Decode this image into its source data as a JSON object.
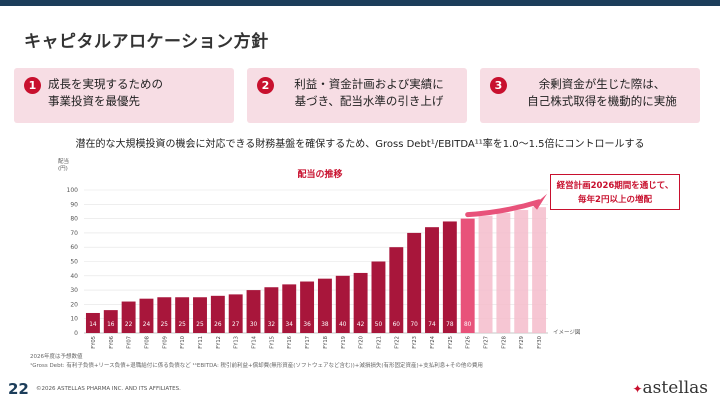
{
  "header": {
    "title": "キャピタルアロケーション方針"
  },
  "pillars": [
    {
      "num": "1",
      "text": "成長を実現するための\n事業投資を最優先"
    },
    {
      "num": "2",
      "text": "利益・資金計画および実績に\n基づき、配当水準の引き上げ"
    },
    {
      "num": "3",
      "text": "余剰資金が生じた際は、\n自己株式取得を機動的に実施"
    }
  ],
  "subtitle": "潜在的な大規模投資の機会に対応できる財務基盤を確保するため、Gross Debt¹/EBITDA¹¹率を1.0〜1.5倍にコントロールする",
  "chart_data": {
    "type": "bar",
    "title": "配当の推移",
    "ylabel": "配当\n(円)",
    "ylim": [
      0,
      100
    ],
    "yticks": [
      0,
      10,
      20,
      30,
      40,
      50,
      60,
      70,
      80,
      90,
      100
    ],
    "categories": [
      "FY05",
      "FY06",
      "FY07",
      "FY08",
      "FY09",
      "FY10",
      "FY11",
      "FY12",
      "FY13",
      "FY14",
      "FY15",
      "FY16",
      "FY17",
      "FY18",
      "FY19",
      "FY20",
      "FY21",
      "FY22",
      "FY23",
      "FY24",
      "FY25",
      "FY26",
      "FY27",
      "FY28",
      "FY29",
      "FY30"
    ],
    "values": [
      14,
      16,
      22,
      24,
      25,
      25,
      25,
      26,
      27,
      30,
      32,
      34,
      36,
      38,
      40,
      42,
      50,
      60,
      70,
      74,
      78,
      80,
      null,
      null,
      null,
      null
    ],
    "labels": [
      "14",
      "16",
      "22",
      "24",
      "25",
      "25",
      "25",
      "26",
      "27",
      "30",
      "32",
      "34",
      "36",
      "38",
      "40",
      "42",
      "50",
      "60",
      "70",
      "74",
      "78",
      "80",
      "",
      "",
      "",
      ""
    ],
    "projected_values": [
      null,
      null,
      null,
      null,
      null,
      null,
      null,
      null,
      null,
      null,
      null,
      null,
      null,
      null,
      null,
      null,
      null,
      null,
      null,
      null,
      null,
      80,
      82,
      84,
      86,
      88
    ],
    "colors": {
      "actual": "#a8163b",
      "plan": "#e8527a",
      "projection": "#f4bccb"
    },
    "grid": true,
    "callout": "経営計画2026期間を通じて、\n毎年2円以上の増配",
    "image_note": "イメージ図"
  },
  "footnotes": [
    "2026年度は予想数値",
    "¹Gross Debt: 有利子負債+リース負債+退職給付に係る負債など  ¹¹EBITDA: 税引前利益+償却費(無形資産(ソフトウェアなど含む))+減損損失(有形固定資産)+支払利息+その他の費用"
  ],
  "footer": {
    "page": "22",
    "copyright": "©2026 ASTELLAS PHARMA INC. AND ITS AFFILIATES.",
    "logo": "astellas"
  }
}
